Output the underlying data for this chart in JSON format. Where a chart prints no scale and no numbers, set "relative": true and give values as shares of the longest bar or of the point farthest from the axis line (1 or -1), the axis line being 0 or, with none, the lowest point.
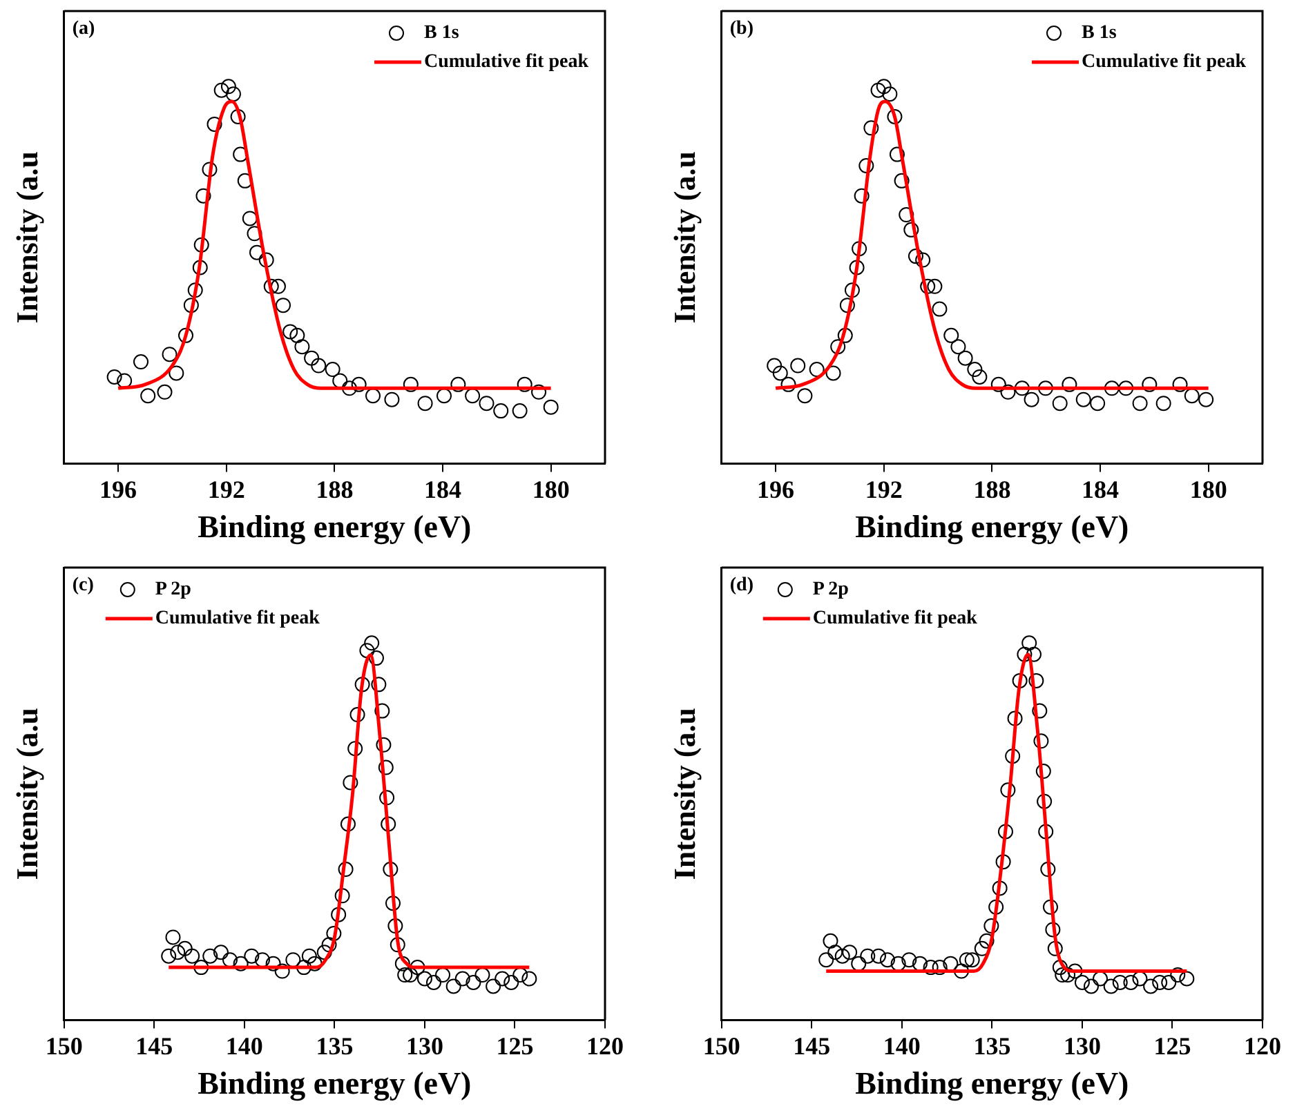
{
  "chart_data": [
    {
      "type": "scatter",
      "title": "(a)",
      "xlabel": "Binding energy (eV)",
      "ylabel": "Intensity (a.u",
      "xlim": [
        198,
        178
      ],
      "xticks": [
        196,
        192,
        188,
        184,
        180
      ],
      "relative": true,
      "legend": "top right",
      "series": [
        {
          "name": "B 1s",
          "type": "scatter",
          "marker": "circle",
          "color": "#000000",
          "x": [
            196.14,
            195.77,
            195.16,
            194.9,
            194.28,
            194.1,
            193.85,
            193.5,
            193.3,
            193.15,
            192.97,
            192.92,
            192.85,
            192.62,
            192.44,
            192.18,
            191.92,
            191.74,
            191.57,
            191.48,
            191.31,
            191.13,
            190.96,
            190.87,
            190.52,
            190.34,
            190.08,
            189.9,
            189.64,
            189.38,
            189.2,
            188.85,
            188.59,
            188.07,
            187.8,
            187.45,
            187.1,
            186.58,
            185.88,
            185.18,
            184.65,
            183.95,
            183.43,
            182.9,
            182.38,
            181.85,
            181.15,
            180.97,
            180.45,
            180.0
          ],
          "values": [
            0.23,
            0.22,
            0.27,
            0.18,
            0.19,
            0.29,
            0.24,
            0.34,
            0.42,
            0.46,
            0.52,
            0.58,
            0.71,
            0.78,
            0.9,
            0.99,
            1.0,
            0.98,
            0.92,
            0.82,
            0.75,
            0.65,
            0.61,
            0.56,
            0.54,
            0.47,
            0.47,
            0.42,
            0.35,
            0.34,
            0.31,
            0.28,
            0.26,
            0.25,
            0.22,
            0.2,
            0.21,
            0.18,
            0.17,
            0.21,
            0.16,
            0.18,
            0.21,
            0.18,
            0.16,
            0.14,
            0.14,
            0.21,
            0.19,
            0.15
          ]
        },
        {
          "name": "Cumulative fit peak",
          "type": "line",
          "marker": "none",
          "color": "#ff0000",
          "x": [
            196,
            195,
            194,
            193.5,
            193,
            192.5,
            192.1,
            191.8,
            191.5,
            191.2,
            190.6,
            190,
            189.5,
            189,
            188.5,
            188,
            180
          ],
          "values": [
            0.2,
            0.21,
            0.26,
            0.34,
            0.52,
            0.82,
            0.94,
            0.96,
            0.92,
            0.8,
            0.55,
            0.35,
            0.25,
            0.21,
            0.2,
            0.2,
            0.2
          ]
        }
      ]
    },
    {
      "type": "scatter",
      "title": "(b)",
      "xlabel": "Binding energy (eV)",
      "ylabel": "Intensity (a.u",
      "xlim": [
        198,
        178
      ],
      "xticks": [
        196,
        192,
        188,
        184,
        180
      ],
      "relative": true,
      "legend": "top right",
      "series": [
        {
          "name": "B 1s",
          "type": "scatter",
          "marker": "circle",
          "color": "#000000",
          "x": [
            196.05,
            195.83,
            195.53,
            195.18,
            194.92,
            194.48,
            193.87,
            193.7,
            193.43,
            193.35,
            193.17,
            193.0,
            192.91,
            192.82,
            192.65,
            192.47,
            192.21,
            192.0,
            191.78,
            191.6,
            191.51,
            191.34,
            191.17,
            190.99,
            190.82,
            190.56,
            190.38,
            190.12,
            189.94,
            189.51,
            189.25,
            188.99,
            188.64,
            188.46,
            187.76,
            187.41,
            186.89,
            186.54,
            186.02,
            185.49,
            185.14,
            184.62,
            184.1,
            183.57,
            183.05,
            182.53,
            182.18,
            181.66,
            181.05,
            180.61,
            180.09
          ],
          "values": [
            0.26,
            0.24,
            0.21,
            0.26,
            0.18,
            0.25,
            0.24,
            0.31,
            0.34,
            0.42,
            0.46,
            0.52,
            0.57,
            0.71,
            0.79,
            0.89,
            0.99,
            1.0,
            0.98,
            0.92,
            0.82,
            0.75,
            0.66,
            0.62,
            0.55,
            0.54,
            0.47,
            0.47,
            0.41,
            0.34,
            0.31,
            0.28,
            0.25,
            0.23,
            0.21,
            0.19,
            0.2,
            0.17,
            0.2,
            0.16,
            0.21,
            0.17,
            0.16,
            0.2,
            0.2,
            0.16,
            0.21,
            0.16,
            0.21,
            0.18,
            0.17
          ]
        },
        {
          "name": "Cumulative fit peak",
          "type": "line",
          "marker": "none",
          "color": "#ff0000",
          "x": [
            196,
            195,
            194,
            193.5,
            193,
            192.5,
            192.2,
            191.95,
            191.6,
            191.3,
            190.7,
            190.1,
            189.6,
            189.1,
            188.6,
            188,
            180
          ],
          "values": [
            0.2,
            0.21,
            0.26,
            0.34,
            0.52,
            0.82,
            0.94,
            0.96,
            0.92,
            0.8,
            0.55,
            0.35,
            0.25,
            0.21,
            0.2,
            0.2,
            0.2
          ]
        }
      ]
    },
    {
      "type": "scatter",
      "title": "(c)",
      "xlabel": "Binding energy (eV)",
      "ylabel": "Intensity (a.u",
      "xlim": [
        150,
        120
      ],
      "xticks": [
        150,
        145,
        140,
        135,
        130,
        125,
        120
      ],
      "relative": true,
      "legend": "top left",
      "series": [
        {
          "name": "P 2p",
          "type": "scatter",
          "marker": "circle",
          "color": "#000000",
          "x": [
            144.2,
            143.96,
            143.7,
            143.3,
            142.9,
            142.4,
            141.9,
            141.3,
            140.8,
            140.2,
            139.6,
            139.0,
            138.4,
            137.9,
            137.3,
            136.7,
            136.4,
            136.1,
            135.56,
            135.3,
            135.04,
            134.78,
            134.57,
            134.38,
            134.25,
            134.12,
            133.86,
            133.73,
            133.46,
            133.2,
            132.94,
            132.68,
            132.55,
            132.36,
            132.28,
            132.15,
            132.1,
            132.02,
            131.9,
            131.76,
            131.63,
            131.5,
            131.23,
            131.1,
            130.8,
            130.4,
            130.0,
            129.5,
            129.0,
            128.4,
            127.9,
            127.3,
            126.8,
            126.2,
            125.7,
            125.2,
            124.7,
            124.2
          ],
          "values": [
            0.17,
            0.22,
            0.18,
            0.19,
            0.17,
            0.14,
            0.17,
            0.18,
            0.16,
            0.15,
            0.17,
            0.16,
            0.15,
            0.13,
            0.16,
            0.14,
            0.17,
            0.15,
            0.18,
            0.2,
            0.23,
            0.28,
            0.33,
            0.4,
            0.52,
            0.63,
            0.72,
            0.81,
            0.89,
            0.98,
            1.0,
            0.96,
            0.89,
            0.82,
            0.73,
            0.67,
            0.59,
            0.52,
            0.4,
            0.31,
            0.25,
            0.2,
            0.15,
            0.12,
            0.12,
            0.14,
            0.11,
            0.1,
            0.12,
            0.09,
            0.11,
            0.1,
            0.12,
            0.09,
            0.11,
            0.1,
            0.12,
            0.11
          ]
        },
        {
          "name": "Cumulative fit peak",
          "type": "line",
          "marker": "none",
          "color": "#ff0000",
          "x": [
            144.2,
            136,
            135.5,
            135,
            134.5,
            134,
            133.5,
            133,
            132.5,
            132,
            131.5,
            131,
            130.5,
            124.2
          ],
          "values": [
            0.14,
            0.14,
            0.16,
            0.22,
            0.4,
            0.6,
            0.88,
            0.968,
            0.76,
            0.48,
            0.21,
            0.15,
            0.14,
            0.14
          ]
        }
      ]
    },
    {
      "type": "scatter",
      "title": "(d)",
      "xlabel": "Binding energy (eV)",
      "ylabel": "Intensity (a.u",
      "xlim": [
        150,
        120
      ],
      "xticks": [
        150,
        145,
        140,
        135,
        130,
        125,
        120
      ],
      "relative": true,
      "legend": "top left",
      "series": [
        {
          "name": "P 2p",
          "type": "scatter",
          "marker": "circle",
          "color": "#000000",
          "x": [
            144.2,
            143.96,
            143.7,
            143.3,
            142.9,
            142.4,
            141.9,
            141.3,
            140.8,
            140.2,
            139.6,
            139.0,
            138.4,
            137.9,
            137.3,
            136.7,
            136.4,
            136.1,
            135.56,
            135.3,
            135.04,
            134.78,
            134.57,
            134.38,
            134.25,
            134.12,
            133.86,
            133.73,
            133.46,
            133.2,
            132.94,
            132.68,
            132.55,
            132.36,
            132.28,
            132.15,
            132.1,
            132.02,
            131.9,
            131.76,
            131.63,
            131.5,
            131.23,
            131.1,
            130.8,
            130.4,
            130.0,
            129.5,
            129.0,
            128.4,
            127.9,
            127.3,
            126.8,
            126.2,
            125.7,
            125.2,
            124.7,
            124.2
          ],
          "values": [
            0.16,
            0.21,
            0.18,
            0.17,
            0.18,
            0.15,
            0.17,
            0.17,
            0.16,
            0.15,
            0.16,
            0.15,
            0.14,
            0.14,
            0.15,
            0.13,
            0.16,
            0.16,
            0.19,
            0.21,
            0.25,
            0.3,
            0.35,
            0.42,
            0.5,
            0.61,
            0.7,
            0.8,
            0.9,
            0.97,
            1.0,
            0.97,
            0.9,
            0.82,
            0.74,
            0.66,
            0.58,
            0.5,
            0.4,
            0.3,
            0.24,
            0.19,
            0.14,
            0.12,
            0.12,
            0.13,
            0.1,
            0.09,
            0.11,
            0.09,
            0.1,
            0.1,
            0.11,
            0.09,
            0.1,
            0.1,
            0.12,
            0.11
          ]
        },
        {
          "name": "Cumulative fit peak",
          "type": "line",
          "marker": "none",
          "color": "#ff0000",
          "x": [
            144.2,
            136,
            135.5,
            135,
            134.5,
            134,
            133.5,
            133,
            132.5,
            132,
            131.5,
            131,
            130.5,
            124.2
          ],
          "values": [
            0.13,
            0.13,
            0.15,
            0.22,
            0.4,
            0.62,
            0.88,
            0.97,
            0.78,
            0.5,
            0.22,
            0.14,
            0.13,
            0.13
          ]
        }
      ]
    }
  ]
}
